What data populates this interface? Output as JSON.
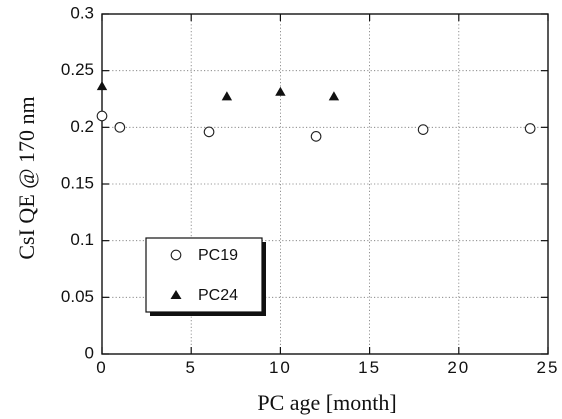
{
  "chart_data": {
    "type": "scatter",
    "title": "",
    "xlabel": "PC age [month]",
    "ylabel": "CsI QE @ 170 nm",
    "xlim": [
      0,
      25
    ],
    "ylim": [
      0,
      0.3
    ],
    "x_ticks": [
      "0",
      "5",
      "10",
      "15",
      "20",
      "25"
    ],
    "y_ticks": [
      "0",
      "0.05",
      "0.1",
      "0.15",
      "0.2",
      "0.25",
      "0.3"
    ],
    "grid": true,
    "legend_position": "lower-left",
    "series": [
      {
        "name": "PC19",
        "marker": "open-circle",
        "color": "#222222",
        "points": [
          {
            "x": 0,
            "y": 0.21
          },
          {
            "x": 1,
            "y": 0.2
          },
          {
            "x": 6,
            "y": 0.196
          },
          {
            "x": 12,
            "y": 0.192
          },
          {
            "x": 18,
            "y": 0.198
          },
          {
            "x": 24,
            "y": 0.199
          }
        ]
      },
      {
        "name": "PC24",
        "marker": "filled-triangle",
        "color": "#111111",
        "points": [
          {
            "x": 0,
            "y": 0.236
          },
          {
            "x": 7,
            "y": 0.227
          },
          {
            "x": 10,
            "y": 0.231
          },
          {
            "x": 13,
            "y": 0.227
          }
        ]
      }
    ]
  }
}
